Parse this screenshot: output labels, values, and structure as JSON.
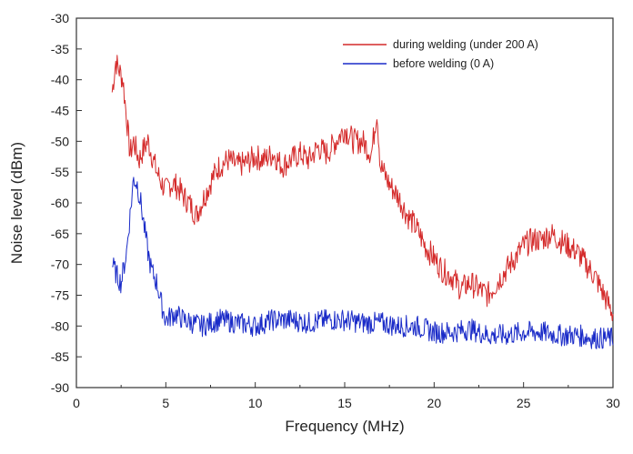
{
  "chart_data": {
    "type": "line",
    "xlabel": "Frequency (MHz)",
    "ylabel": "Noise level (dBm)",
    "xlim": [
      0,
      30
    ],
    "ylim": [
      -90,
      -30
    ],
    "x_ticks": [
      0,
      5,
      10,
      15,
      20,
      25,
      30
    ],
    "y_ticks": [
      -30,
      -35,
      -40,
      -45,
      -50,
      -55,
      -60,
      -65,
      -70,
      -75,
      -80,
      -85,
      -90
    ],
    "grid": false,
    "legend_position": "top-right",
    "series": [
      {
        "name": "during welding  (under 200 A)",
        "color": "#d42a2a",
        "x": [
          2.0,
          2.2,
          2.4,
          2.6,
          2.8,
          3.0,
          3.2,
          3.5,
          3.8,
          4.0,
          4.2,
          4.5,
          4.8,
          5.0,
          5.2,
          5.5,
          5.8,
          6.0,
          6.3,
          6.7,
          7.0,
          7.3,
          7.6,
          8.0,
          8.5,
          9.0,
          9.5,
          10.0,
          10.5,
          11.0,
          11.5,
          12.0,
          12.5,
          13.0,
          13.5,
          14.0,
          14.5,
          15.0,
          15.5,
          16.0,
          16.5,
          16.8,
          17.0,
          17.5,
          18.0,
          18.5,
          19.0,
          19.5,
          20.0,
          20.5,
          21.0,
          21.5,
          22.0,
          22.5,
          23.0,
          23.5,
          24.0,
          24.5,
          25.0,
          25.5,
          26.0,
          26.5,
          27.0,
          27.5,
          28.0,
          28.5,
          29.0,
          29.5,
          30.0
        ],
        "y": [
          -42,
          -37,
          -38.5,
          -40,
          -46,
          -52,
          -50,
          -53,
          -51,
          -50,
          -52,
          -55,
          -57,
          -58,
          -57,
          -57,
          -58,
          -59,
          -60,
          -62,
          -60,
          -58,
          -56,
          -54,
          -53,
          -54,
          -53.5,
          -52.5,
          -53,
          -52,
          -54,
          -53,
          -52,
          -53,
          -51,
          -52,
          -50,
          -48,
          -50,
          -50,
          -52,
          -45,
          -54,
          -57,
          -59,
          -62,
          -64,
          -67,
          -69,
          -71,
          -72,
          -74,
          -73,
          -74,
          -75,
          -73,
          -71,
          -69,
          -67,
          -66,
          -66,
          -65,
          -66,
          -67,
          -68,
          -70,
          -72,
          -75,
          -78
        ]
      },
      {
        "name": "before welding  (0 A)",
        "color": "#1a2bc8",
        "x": [
          2.0,
          2.3,
          2.5,
          2.8,
          3.0,
          3.2,
          3.4,
          3.6,
          3.8,
          4.0,
          4.2,
          4.5,
          4.8,
          5.0,
          5.5,
          6.0,
          7.0,
          8.0,
          9.0,
          10.0,
          11.0,
          12.0,
          13.0,
          14.0,
          15.0,
          16.0,
          17.0,
          18.0,
          19.0,
          20.0,
          21.0,
          22.0,
          23.0,
          24.0,
          25.0,
          26.0,
          27.0,
          28.0,
          29.0,
          30.0
        ],
        "y": [
          -70,
          -72,
          -73,
          -68,
          -62,
          -56,
          -57,
          -60,
          -64,
          -68,
          -71,
          -73,
          -77,
          -79,
          -78,
          -79,
          -80,
          -79,
          -79.5,
          -80,
          -79,
          -79,
          -79.5,
          -79,
          -79,
          -79.5,
          -79.5,
          -80,
          -80,
          -81,
          -81,
          -80.5,
          -81.5,
          -81.5,
          -81,
          -81,
          -81.5,
          -81.5,
          -82,
          -82
        ]
      }
    ]
  }
}
